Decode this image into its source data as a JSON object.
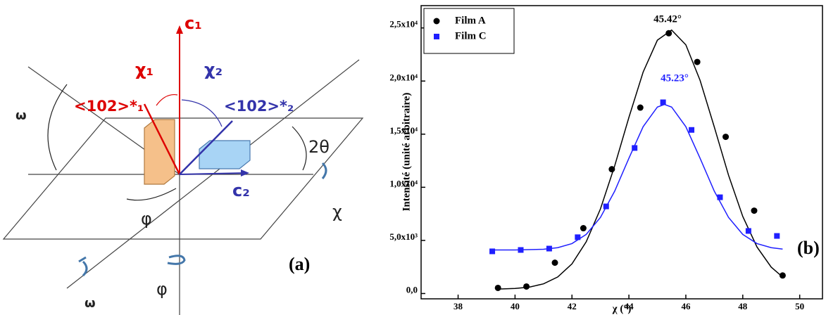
{
  "diagram": {
    "labels": [
      "c₁",
      "χ₁",
      "χ₂",
      "<102>*₁",
      "<102>*₂",
      "ω",
      "2θ",
      "c₂",
      "φ",
      "χ",
      "ω",
      "φ"
    ],
    "panel_label": "(a)"
  },
  "chart_data": {
    "type": "scatter",
    "x_label": "χ (°)",
    "y_label": "Intensité (unité arbitraire)",
    "xlim": [
      36.7,
      50.8
    ],
    "xticks": [
      38,
      40,
      42,
      44,
      46,
      48,
      50
    ],
    "ylim": [
      -500,
      27100
    ],
    "yticks": [
      {
        "value": 0,
        "label": "0,0"
      },
      {
        "value": 5000,
        "label": "5,0x10³"
      },
      {
        "value": 10000,
        "label": "1,0x10⁴"
      },
      {
        "value": 15000,
        "label": "1,5x10⁴"
      },
      {
        "value": 20000,
        "label": "2,0x10⁴"
      },
      {
        "value": 25000,
        "label": "2,5x10⁴"
      }
    ],
    "legend": "upper left",
    "series": [
      {
        "name": "Film A",
        "color": "#000000",
        "marker": "circle",
        "x": [
          39.4,
          40.4,
          41.4,
          42.4,
          43.4,
          44.4,
          45.4,
          46.4,
          47.4,
          48.4,
          49.4
        ],
        "values": [
          530,
          660,
          2900,
          6150,
          11700,
          17500,
          24500,
          21800,
          14750,
          7800,
          1700
        ]
      },
      {
        "name": "Film C",
        "color": "#1f1fff",
        "marker": "square",
        "x": [
          39.2,
          40.2,
          41.2,
          42.2,
          43.2,
          44.2,
          45.2,
          46.2,
          47.2,
          48.2,
          49.2
        ],
        "values": [
          3970,
          4100,
          4230,
          5300,
          8200,
          13700,
          18000,
          15400,
          9060,
          5890,
          5420
        ]
      },
      {
        "color": "#000000",
        "marker": "line",
        "x": [
          39.4,
          40,
          40.5,
          41,
          41.5,
          42,
          42.5,
          43,
          43.5,
          44,
          44.5,
          45,
          45.5,
          46,
          46.5,
          47,
          47.5,
          48,
          48.5,
          49,
          49.4
        ],
        "values": [
          419,
          474,
          603,
          910,
          1559,
          2791,
          4865,
          7964,
          12014,
          16577,
          20847,
          23848,
          24800,
          23409,
          20066,
          15674,
          11136,
          7256,
          4377,
          2481,
          1559
        ]
      },
      {
        "color": "#1f1fff",
        "marker": "line",
        "x": [
          39.2,
          40,
          41,
          41.5,
          42,
          42.5,
          43,
          43.5,
          44,
          44.5,
          45,
          45.25,
          45.5,
          46,
          46.5,
          47,
          47.5,
          48,
          48.5,
          49,
          49.4
        ],
        "values": [
          4100,
          4100,
          4166,
          4314,
          4701,
          5562,
          7163,
          9635,
          12731,
          15704,
          17553,
          17800,
          17553,
          15704,
          12731,
          9635,
          7163,
          5562,
          4701,
          4314,
          4185
        ]
      }
    ],
    "annotations": [
      "45.42°",
      "45.23°",
      "(b)"
    ]
  }
}
